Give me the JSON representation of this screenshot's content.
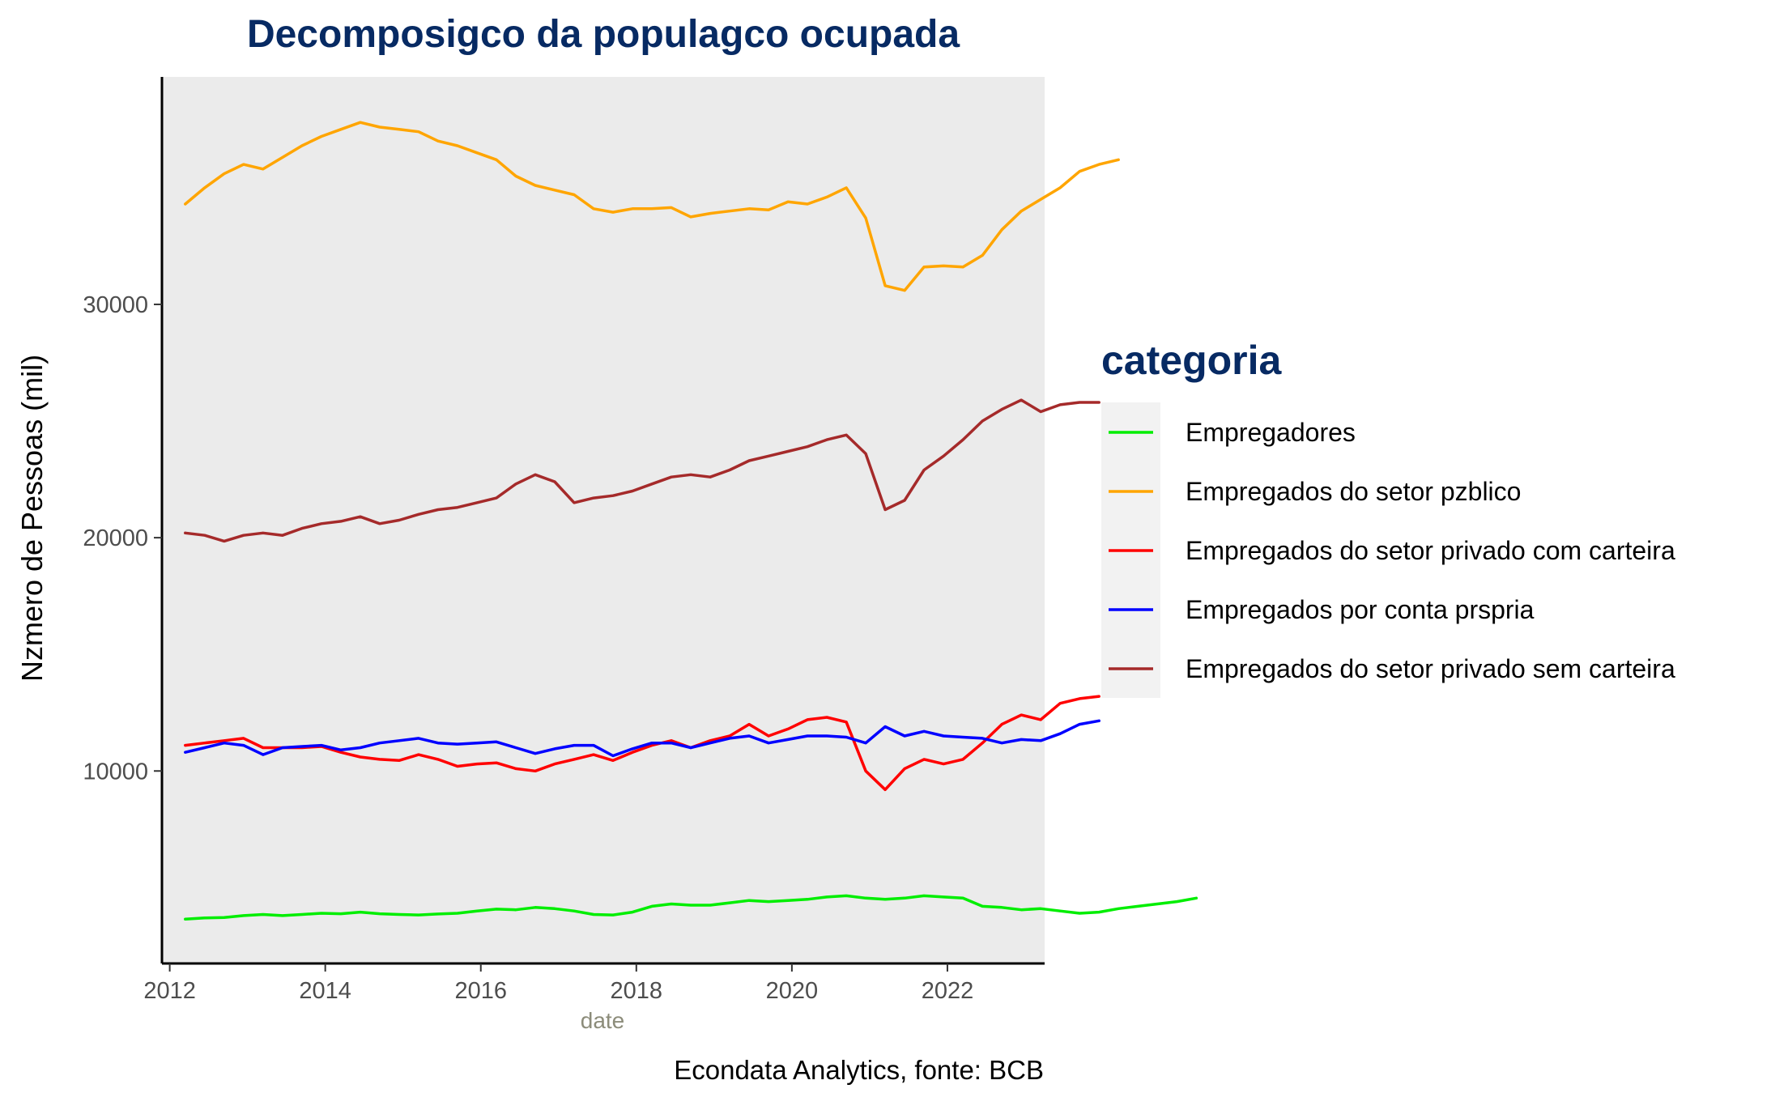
{
  "chart_data": {
    "type": "line",
    "title": "Decomposigco da populagco ocupada",
    "xlabel": "date",
    "ylabel": "Nzmero de Pessoas (mil)",
    "caption": "Econdata Analytics, fonte: BCB",
    "xlim": [
      2011.9,
      2023.25
    ],
    "ylim": [
      1750,
      39750
    ],
    "xticks": [
      2012,
      2014,
      2016,
      2018,
      2020,
      2022
    ],
    "xtick_labels": [
      "2012",
      "2014",
      "2016",
      "2018",
      "2020",
      "2022"
    ],
    "yticks": [
      10000,
      20000,
      30000
    ],
    "ytick_labels": [
      "10000",
      "20000",
      "30000"
    ],
    "grid": false,
    "panel_background": "#ebebeb",
    "legend": {
      "title": "categoria",
      "position": "right",
      "entries": [
        "Empregadores",
        "Empregados do setor pzblico",
        "Empregados do setor privado com carteira",
        "Empregados por conta prspria",
        "Empregados do setor privado sem carteira"
      ]
    },
    "x_start": 2012.2,
    "x_step": 0.25,
    "series": [
      {
        "name": "Empregadores",
        "color": "#00ee00",
        "values": [
          3650,
          3700,
          3720,
          3800,
          3850,
          3800,
          3850,
          3900,
          3880,
          3950,
          3880,
          3850,
          3830,
          3870,
          3900,
          4000,
          4080,
          4050,
          4150,
          4100,
          4000,
          3850,
          3830,
          3950,
          4200,
          4300,
          4250,
          4250,
          4350,
          4450,
          4400,
          4450,
          4500,
          4600,
          4650,
          4550,
          4500,
          4550,
          4650,
          4600,
          4550,
          4200,
          4150,
          4050,
          4100,
          4000,
          3900,
          3950,
          4100,
          4200,
          4300,
          4400,
          4550
        ]
      },
      {
        "name": "Empregados do setor pzblico",
        "color": "#ffa500",
        "values": [
          34300,
          35000,
          35600,
          36000,
          35800,
          36300,
          36800,
          37200,
          37500,
          37800,
          37600,
          37500,
          37400,
          37000,
          36800,
          36500,
          36200,
          35500,
          35100,
          34900,
          34700,
          34100,
          33950,
          34100,
          34100,
          34150,
          33750,
          33900,
          34000,
          34100,
          34050,
          34400,
          34300,
          34600,
          35000,
          33700,
          30800,
          30600,
          31600,
          31650,
          31600,
          32100,
          33200,
          34000,
          34500,
          35000,
          35700,
          36000,
          36200
        ]
      },
      {
        "name": "Empregados do setor privado com carteira",
        "color": "#ff0000",
        "values": [
          11100,
          11200,
          11300,
          11400,
          11000,
          11000,
          11000,
          11050,
          10800,
          10600,
          10500,
          10450,
          10700,
          10500,
          10200,
          10300,
          10350,
          10100,
          10000,
          10300,
          10500,
          10700,
          10450,
          10800,
          11100,
          11300,
          11000,
          11300,
          11500,
          12000,
          11500,
          11800,
          12200,
          12300,
          12100,
          10000,
          9200,
          10100,
          10500,
          10300,
          10500,
          11200,
          12000,
          12400,
          12200,
          12900,
          13100,
          13200
        ]
      },
      {
        "name": "Empregados por conta prspria",
        "color": "#0000ff",
        "values": [
          10800,
          11000,
          11200,
          11100,
          10700,
          11000,
          11050,
          11100,
          10900,
          11000,
          11200,
          11300,
          11400,
          11200,
          11150,
          11200,
          11250,
          11000,
          10750,
          10950,
          11100,
          11100,
          10650,
          10950,
          11200,
          11200,
          11000,
          11200,
          11400,
          11500,
          11200,
          11350,
          11500,
          11500,
          11450,
          11200,
          11900,
          11500,
          11700,
          11500,
          11450,
          11400,
          11200,
          11350,
          11300,
          11600,
          12000,
          12150
        ]
      },
      {
        "name": "Empregados do setor privado sem carteira",
        "color": "#a52a2a",
        "values": [
          20200,
          20100,
          19850,
          20100,
          20200,
          20100,
          20400,
          20600,
          20700,
          20900,
          20600,
          20750,
          21000,
          21200,
          21300,
          21500,
          21700,
          22300,
          22700,
          22400,
          21500,
          21700,
          21800,
          22000,
          22300,
          22600,
          22700,
          22600,
          22900,
          23300,
          23500,
          23700,
          23900,
          24200,
          24400,
          23600,
          21200,
          21600,
          22900,
          23500,
          24200,
          25000,
          25500,
          25900,
          25400,
          25700,
          25800,
          25800
        ]
      }
    ]
  }
}
